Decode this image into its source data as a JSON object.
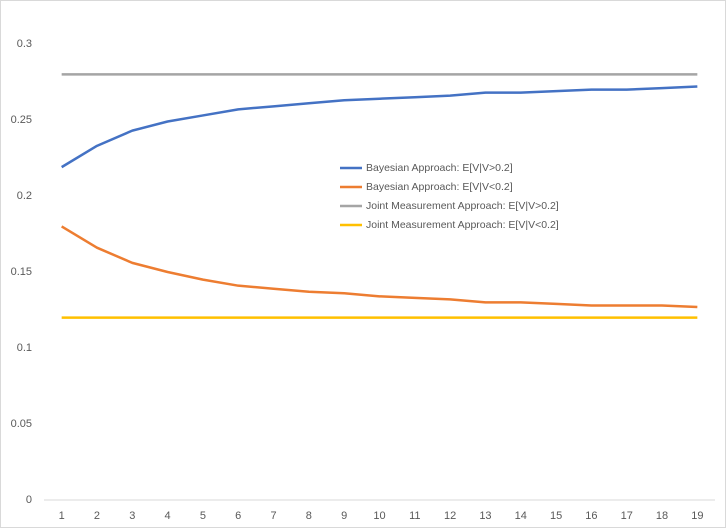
{
  "chart_data": {
    "type": "line",
    "categories": [
      "1",
      "2",
      "3",
      "4",
      "5",
      "6",
      "7",
      "8",
      "9",
      "10",
      "11",
      "12",
      "13",
      "14",
      "15",
      "16",
      "17",
      "18",
      "19"
    ],
    "series": [
      {
        "name": "Bayesian Approach: E[V|V>0.2]",
        "color": "#4472c4",
        "values": [
          0.219,
          0.233,
          0.243,
          0.249,
          0.253,
          0.257,
          0.259,
          0.261,
          0.263,
          0.264,
          0.265,
          0.266,
          0.268,
          0.268,
          0.269,
          0.27,
          0.27,
          0.271,
          0.272
        ]
      },
      {
        "name": "Bayesian Approach: E[V|V<0.2]",
        "color": "#ed7d31",
        "values": [
          0.18,
          0.166,
          0.156,
          0.15,
          0.145,
          0.141,
          0.139,
          0.137,
          0.136,
          0.134,
          0.133,
          0.132,
          0.13,
          0.13,
          0.129,
          0.128,
          0.128,
          0.128,
          0.127
        ]
      },
      {
        "name": "Joint Measurement Approach: E[V|V>0.2]",
        "color": "#a5a5a5",
        "values": [
          0.28,
          0.28,
          0.28,
          0.28,
          0.28,
          0.28,
          0.28,
          0.28,
          0.28,
          0.28,
          0.28,
          0.28,
          0.28,
          0.28,
          0.28,
          0.28,
          0.28,
          0.28,
          0.28
        ]
      },
      {
        "name": "Joint Measurement Approach: E[V|V<0.2]",
        "color": "#ffc000",
        "values": [
          0.12,
          0.12,
          0.12,
          0.12,
          0.12,
          0.12,
          0.12,
          0.12,
          0.12,
          0.12,
          0.12,
          0.12,
          0.12,
          0.12,
          0.12,
          0.12,
          0.12,
          0.12,
          0.12
        ]
      }
    ],
    "ylim": [
      0,
      0.3
    ],
    "yticks": [
      0,
      0.05,
      0.1,
      0.15,
      0.2,
      0.25,
      0.3
    ],
    "grid": false,
    "legend_position": "center"
  }
}
